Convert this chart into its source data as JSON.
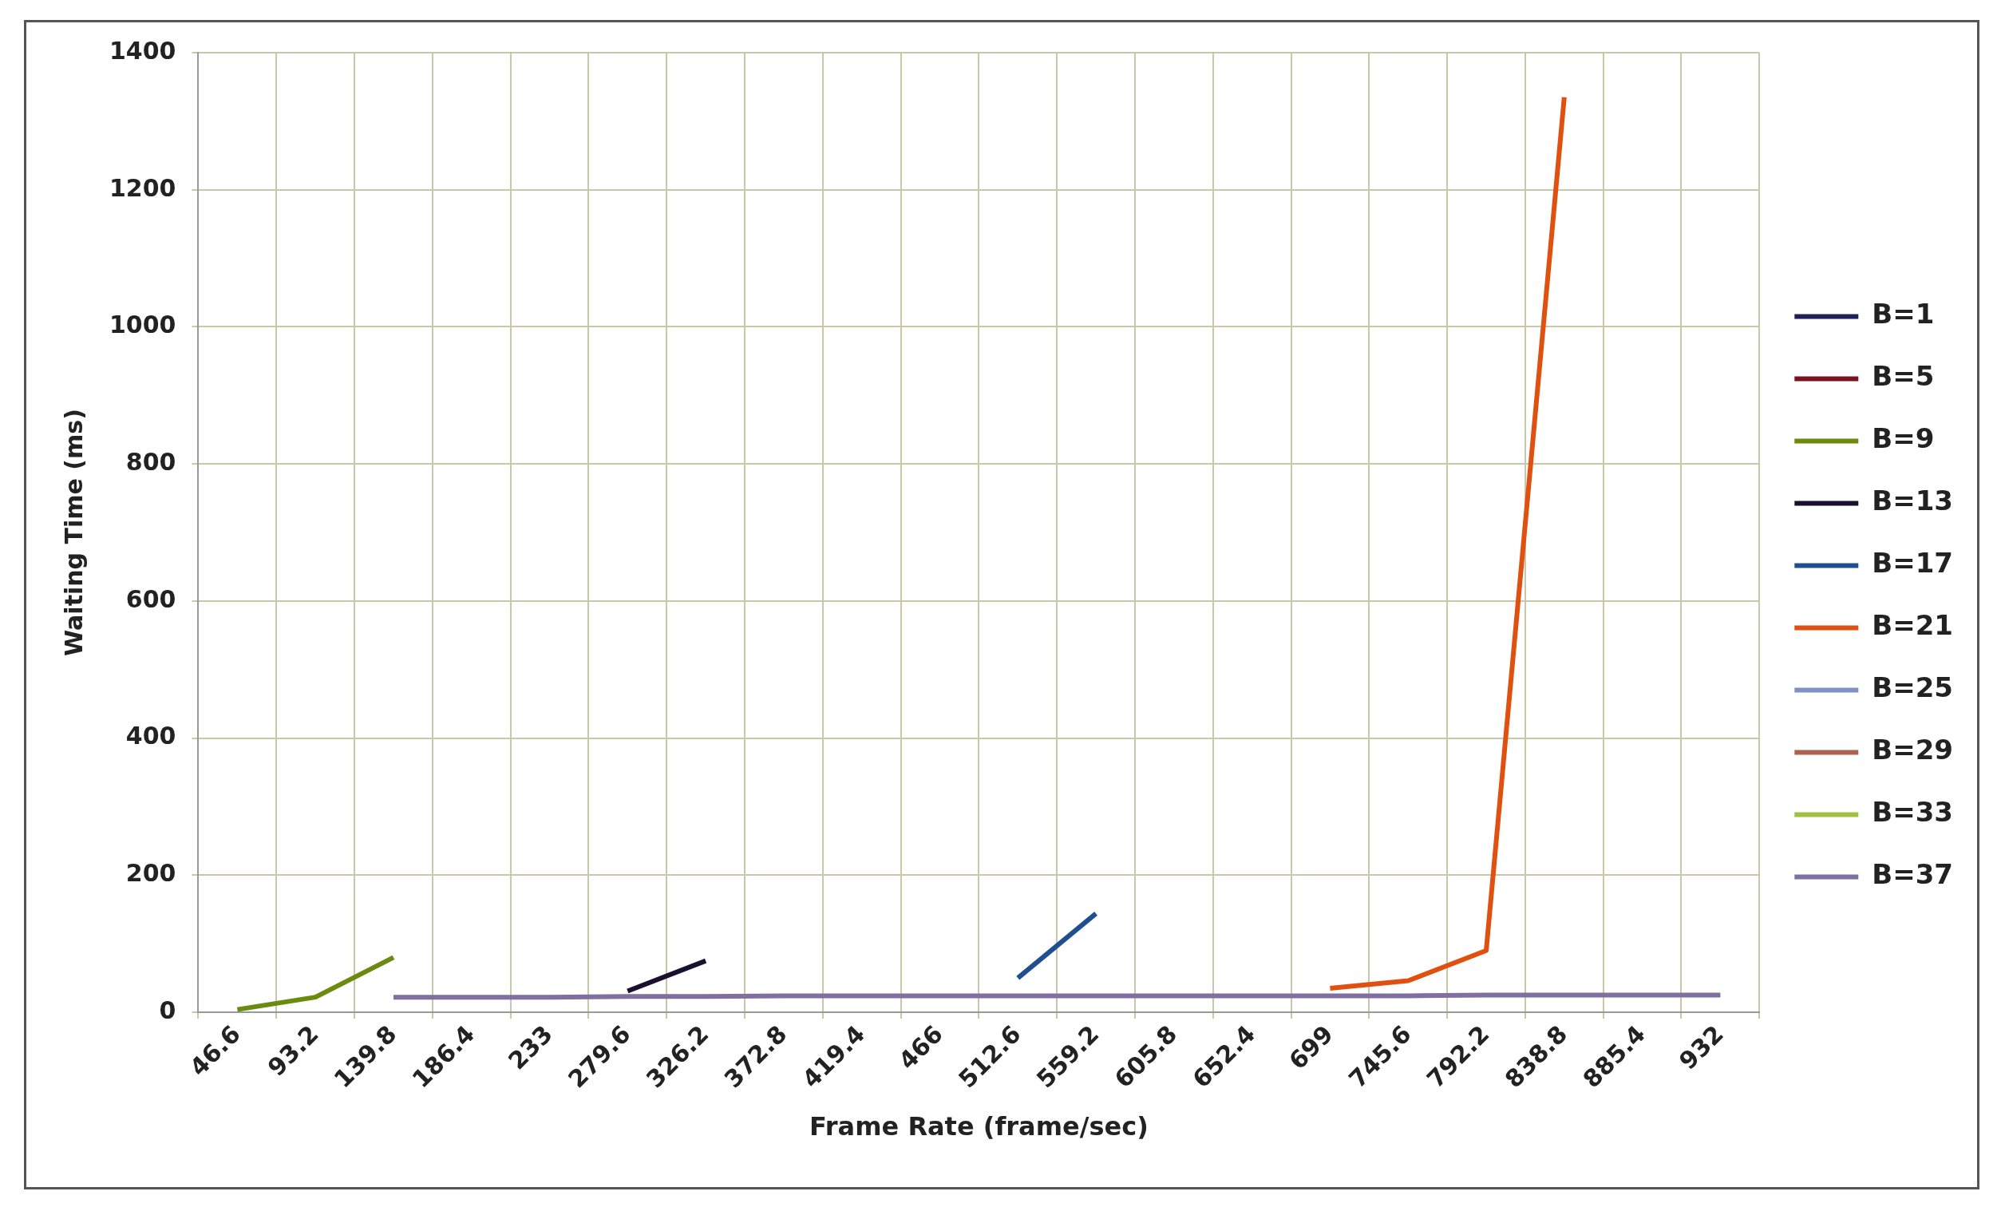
{
  "chart_data": {
    "type": "line",
    "xlabel": "Frame Rate (frame/sec)",
    "ylabel": "Waiting Time (ms)",
    "categories": [
      "46.6",
      "93.2",
      "139.8",
      "186.4",
      "233",
      "279.6",
      "326.2",
      "372.8",
      "419.4",
      "466",
      "512.6",
      "559.2",
      "605.8",
      "652.4",
      "699",
      "745.6",
      "792.2",
      "838.8",
      "885.4",
      "932"
    ],
    "ylim": [
      0,
      1400
    ],
    "yticks": [
      0,
      200,
      400,
      600,
      800,
      1000,
      1200,
      1400
    ],
    "grid": true,
    "legend": "right",
    "marker": "none",
    "line_style": "solid",
    "series": [
      {
        "name": "B=1",
        "color": "#1f1f5a",
        "values": [
          null,
          null,
          null,
          null,
          null,
          null,
          null,
          null,
          null,
          null,
          null,
          null,
          null,
          null,
          null,
          null,
          null,
          null,
          null,
          null
        ]
      },
      {
        "name": "B=5",
        "color": "#7a1020",
        "values": [
          null,
          null,
          null,
          null,
          null,
          null,
          null,
          null,
          null,
          null,
          null,
          null,
          null,
          null,
          null,
          null,
          null,
          null,
          null,
          null
        ]
      },
      {
        "name": "B=9",
        "color": "#6a8a10",
        "values": [
          4,
          22,
          80,
          null,
          null,
          null,
          null,
          null,
          null,
          null,
          null,
          null,
          null,
          null,
          null,
          null,
          null,
          null,
          null,
          null
        ]
      },
      {
        "name": "B=13",
        "color": "#1a1030",
        "values": [
          null,
          null,
          null,
          null,
          null,
          31,
          75,
          null,
          null,
          null,
          null,
          null,
          null,
          null,
          null,
          null,
          null,
          null,
          null,
          null
        ]
      },
      {
        "name": "B=17",
        "color": "#1f4f8f",
        "values": [
          null,
          null,
          null,
          null,
          null,
          null,
          null,
          null,
          null,
          null,
          50,
          144,
          null,
          null,
          null,
          null,
          null,
          null,
          null,
          null
        ]
      },
      {
        "name": "B=21",
        "color": "#e05010",
        "values": [
          null,
          null,
          null,
          null,
          null,
          null,
          null,
          null,
          null,
          null,
          null,
          null,
          null,
          null,
          35,
          46,
          90,
          1335,
          null,
          null
        ]
      },
      {
        "name": "B=25",
        "color": "#8090c8",
        "values": [
          null,
          null,
          null,
          null,
          null,
          null,
          null,
          null,
          null,
          null,
          null,
          null,
          null,
          null,
          null,
          null,
          null,
          null,
          null,
          null
        ]
      },
      {
        "name": "B=29",
        "color": "#b06050",
        "values": [
          null,
          null,
          null,
          null,
          null,
          null,
          null,
          null,
          null,
          null,
          null,
          null,
          null,
          null,
          null,
          null,
          null,
          null,
          null,
          null
        ]
      },
      {
        "name": "B=33",
        "color": "#a0c040",
        "values": [
          null,
          null,
          null,
          null,
          null,
          null,
          null,
          null,
          null,
          null,
          null,
          null,
          null,
          null,
          null,
          null,
          null,
          null,
          null,
          null
        ]
      },
      {
        "name": "B=37",
        "color": "#8070a0",
        "values": [
          null,
          null,
          22,
          22,
          22,
          23,
          23,
          24,
          24,
          24,
          24,
          24,
          24,
          24,
          24,
          24,
          25,
          25,
          25,
          25
        ]
      }
    ]
  }
}
